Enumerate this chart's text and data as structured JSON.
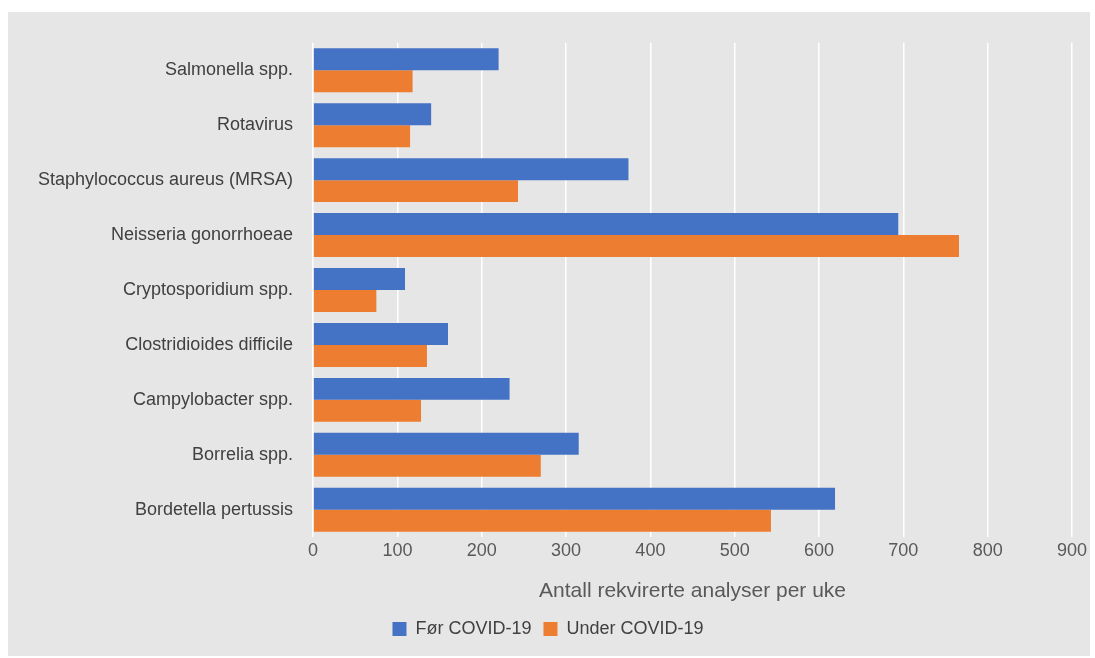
{
  "chart_data": {
    "type": "bar",
    "orientation": "horizontal",
    "xlabel": "Antall rekvirerte analyser per uke",
    "categories": [
      "Salmonella spp.",
      "Rotavirus",
      "Staphylococcus aureus (MRSA)",
      "Neisseria gonorrhoeae",
      "Cryptosporidium spp.",
      "Clostridioides difficile",
      "Campylobacter spp.",
      "Borrelia spp.",
      "Bordetella pertussis"
    ],
    "series": [
      {
        "name": "Før COVID-19",
        "color": "#4472c4",
        "values": [
          220,
          140,
          374,
          694,
          109,
          160,
          233,
          315,
          619
        ]
      },
      {
        "name": "Under COVID-19",
        "color": "#ed7d31",
        "values": [
          118,
          115,
          243,
          766,
          75,
          135,
          128,
          270,
          543
        ]
      }
    ],
    "xlim": [
      0,
      900
    ],
    "xticks": [
      0,
      100,
      200,
      300,
      400,
      500,
      600,
      700,
      800,
      900
    ],
    "grid": "x",
    "legend": "bottom"
  }
}
